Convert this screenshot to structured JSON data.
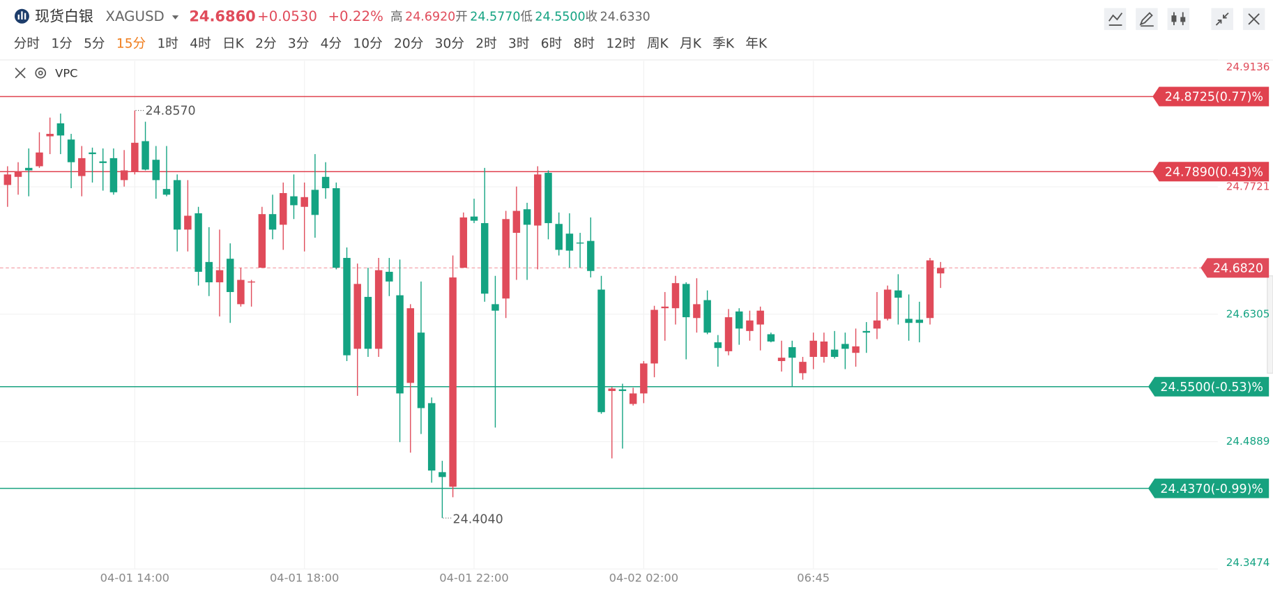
{
  "header": {
    "name": "现货白银",
    "symbol": "XAGUSD",
    "price": "24.6860",
    "change": "+0.0530",
    "change_pct": "+0.22%",
    "high_label": "高",
    "high": "24.6920",
    "open_label": "开",
    "open": "24.5770",
    "low_label": "低",
    "low": "24.5500",
    "close_label": "收",
    "close": "24.6330"
  },
  "timeframes": [
    "分时",
    "1分",
    "5分",
    "15分",
    "1时",
    "4时",
    "日K",
    "2分",
    "3分",
    "4分",
    "10分",
    "20分",
    "30分",
    "2时",
    "3时",
    "6时",
    "8时",
    "12时",
    "周K",
    "月K",
    "季K",
    "年K"
  ],
  "active_timeframe": 3,
  "indicator": "VPC",
  "chart_data": {
    "type": "candlestick",
    "categories": [
      null,
      null,
      null,
      null,
      null,
      null,
      null,
      null,
      null,
      null,
      null,
      null,
      "04-01 14:00",
      null,
      null,
      null,
      null,
      null,
      null,
      null,
      null,
      null,
      null,
      null,
      null,
      null,
      null,
      null,
      "04-01 18:00",
      null,
      null,
      null,
      null,
      null,
      null,
      null,
      null,
      null,
      null,
      null,
      null,
      null,
      null,
      null,
      "04-01 22:00",
      null,
      null,
      null,
      null,
      null,
      null,
      null,
      null,
      null,
      null,
      null,
      null,
      null,
      null,
      null,
      "04-02 02:00",
      null,
      null,
      null,
      null,
      null,
      null,
      null,
      null,
      null,
      null,
      null,
      null,
      null,
      null,
      null,
      "06:45",
      null,
      null,
      null,
      null,
      null,
      null,
      null,
      null,
      null,
      null,
      null,
      null
    ],
    "open": [
      24.7742,
      24.7832,
      24.7932,
      24.795,
      24.8283,
      24.8427,
      24.8247,
      24.7841,
      24.8103,
      24.8004,
      24.804,
      24.7796,
      24.7886,
      24.8229,
      24.8022,
      24.7697,
      24.7796,
      24.7246,
      24.7427,
      24.6886,
      24.666,
      24.6922,
      24.6417,
      24.666,
      24.6822,
      24.7418,
      24.73,
      24.7616,
      24.7499,
      24.7688,
      24.7832,
      24.7706,
      24.6931,
      24.5921,
      24.6498,
      24.5921,
      24.6777,
      24.6516,
      24.5542,
      24.6101,
      24.5317,
      24.455,
      24.4388,
      24.6822,
      24.7391,
      24.7318,
      24.6417,
      24.648,
      24.721,
      24.7472,
      24.7291,
      24.7877,
      24.7309,
      24.7201,
      24.7102,
      24.712,
      24.6579,
      24.5452,
      24.547,
      24.5308,
      24.5425,
      24.5758,
      24.6372,
      24.6372,
      24.6642,
      24.6263,
      24.6462,
      24.5993,
      24.5894,
      24.6336,
      24.6119,
      24.6191,
      24.6083,
      24.5785,
      24.5939,
      24.565,
      24.5831,
      24.5831,
      24.5912,
      24.5975,
      24.5876,
      24.6119,
      24.6146,
      24.6254,
      24.657,
      24.6254,
      24.6245,
      24.6263,
      24.6759
    ],
    "high": [
      24.795,
      24.7995,
      24.8148,
      24.8328,
      24.8491,
      24.8536,
      24.831,
      24.8175,
      24.8157,
      24.8148,
      24.8148,
      24.813,
      24.857,
      24.8445,
      24.8175,
      24.8175,
      24.7859,
      24.7796,
      24.7499,
      24.7273,
      24.7246,
      24.7093,
      24.6822,
      24.6687,
      24.7499,
      24.7634,
      24.7769,
      24.7859,
      24.7769,
      24.8085,
      24.7995,
      24.7769,
      24.7048,
      24.6868,
      24.6822,
      24.6931,
      24.6931,
      24.6913,
      24.6417,
      24.6669,
      24.538,
      24.4676,
      24.6958,
      24.7436,
      24.7589,
      24.7932,
      24.6732,
      24.7454,
      24.7724,
      24.7544,
      24.795,
      24.7904,
      24.7436,
      24.7427,
      24.721,
      24.7381,
      24.6732,
      24.5497,
      24.5533,
      24.5488,
      24.5785,
      24.6399,
      24.6552,
      24.6732,
      24.666,
      24.6705,
      24.657,
      24.6074,
      24.6363,
      24.6372,
      24.6345,
      24.639,
      24.6101,
      24.6011,
      24.6011,
      24.5831,
      24.6101,
      24.6101,
      24.6119,
      24.6101,
      24.6146,
      24.6218,
      24.6552,
      24.6624,
      24.675,
      24.6525,
      24.6444,
      24.6931,
      24.6886
    ],
    "low": [
      24.7499,
      24.7634,
      24.7616,
      24.7932,
      24.8085,
      24.8085,
      24.7706,
      24.7616,
      24.7769,
      24.7679,
      24.7634,
      24.7724,
      24.7859,
      24.7904,
      24.7589,
      24.7616,
      24.7003,
      24.7003,
      24.6624,
      24.6507,
      24.6281,
      24.6209,
      24.639,
      24.639,
      24.6822,
      24.7138,
      24.7021,
      24.7363,
      24.7003,
      24.7156,
      24.7589,
      24.6804,
      24.5785,
      24.5398,
      24.5831,
      24.5831,
      24.6507,
      24.4884,
      24.4767,
      24.4974,
      24.4433,
      24.404,
      24.4271,
      24.6822,
      24.7318,
      24.6444,
      24.5046,
      24.6263,
      24.6687,
      24.6687,
      24.6804,
      24.7138,
      24.6958,
      24.6822,
      24.6822,
      24.6714,
      24.5199,
      24.4703,
      24.4812,
      24.529,
      24.5317,
      24.5605,
      24.6011,
      24.6191,
      24.5804,
      24.6101,
      24.6083,
      24.5722,
      24.5849,
      24.5966,
      24.6011,
      24.5903,
      24.5993,
      24.5668,
      24.55,
      24.5578,
      24.5695,
      24.5767,
      24.5813,
      24.5695,
      24.5722,
      24.5876,
      24.6029,
      24.6236,
      24.6191,
      24.6011,
      24.5993,
      24.6191,
      24.6597
    ],
    "close": [
      24.7859,
      24.7886,
      24.7904,
      24.8103,
      24.831,
      24.8292,
      24.7995,
      24.804,
      24.8085,
      24.7986,
      24.7661,
      24.7904,
      24.8211,
      24.7913,
      24.7796,
      24.7634,
      24.7246,
      24.74,
      24.6777,
      24.666,
      24.6795,
      24.6552,
      24.6687,
      24.6669,
      24.7418,
      24.7246,
      24.7652,
      24.7517,
      24.7607,
      24.7409,
      24.7706,
      24.6822,
      24.5849,
      24.6642,
      24.5921,
      24.6795,
      24.6669,
      24.5425,
      24.6372,
      24.5262,
      24.4568,
      24.4496,
      24.6714,
      24.7381,
      24.7345,
      24.6534,
      24.6345,
      24.7363,
      24.7454,
      24.73,
      24.7859,
      24.7318,
      24.7021,
      24.7012,
      24.7093,
      24.6786,
      24.5217,
      24.5479,
      24.5452,
      24.5425,
      24.5758,
      24.6354,
      24.639,
      24.6651,
      24.6272,
      24.6417,
      24.6101,
      24.593,
      24.6272,
      24.6146,
      24.6236,
      24.6345,
      24.6002,
      24.5822,
      24.5822,
      24.5776,
      24.6011,
      24.6002,
      24.5831,
      24.5921,
      24.5948,
      24.6101,
      24.6236,
      24.6579,
      24.6489,
      24.6209,
      24.6209,
      24.6904,
      24.682
    ],
    "up_color": "#e04b5a",
    "down_color": "#14a382",
    "ylim": [
      24.3474,
      24.9136
    ],
    "yticks": [
      24.3474,
      24.4889,
      24.6305,
      24.7721,
      24.9136
    ],
    "grid": true,
    "high_marker": "24.8570",
    "low_marker": "24.4040",
    "last_price": {
      "value": 24.682,
      "label": "24.6820"
    },
    "levels": [
      {
        "value": 24.8725,
        "label": "24.8725(0.77)%",
        "color": "#e0424f"
      },
      {
        "value": 24.789,
        "label": "24.7890(0.43)%",
        "color": "#e0424f"
      },
      {
        "value": 24.55,
        "label": "24.5500(-0.53)%",
        "color": "#17a27f"
      },
      {
        "value": 24.437,
        "label": "24.4370(-0.99)%",
        "color": "#17a27f"
      }
    ]
  }
}
